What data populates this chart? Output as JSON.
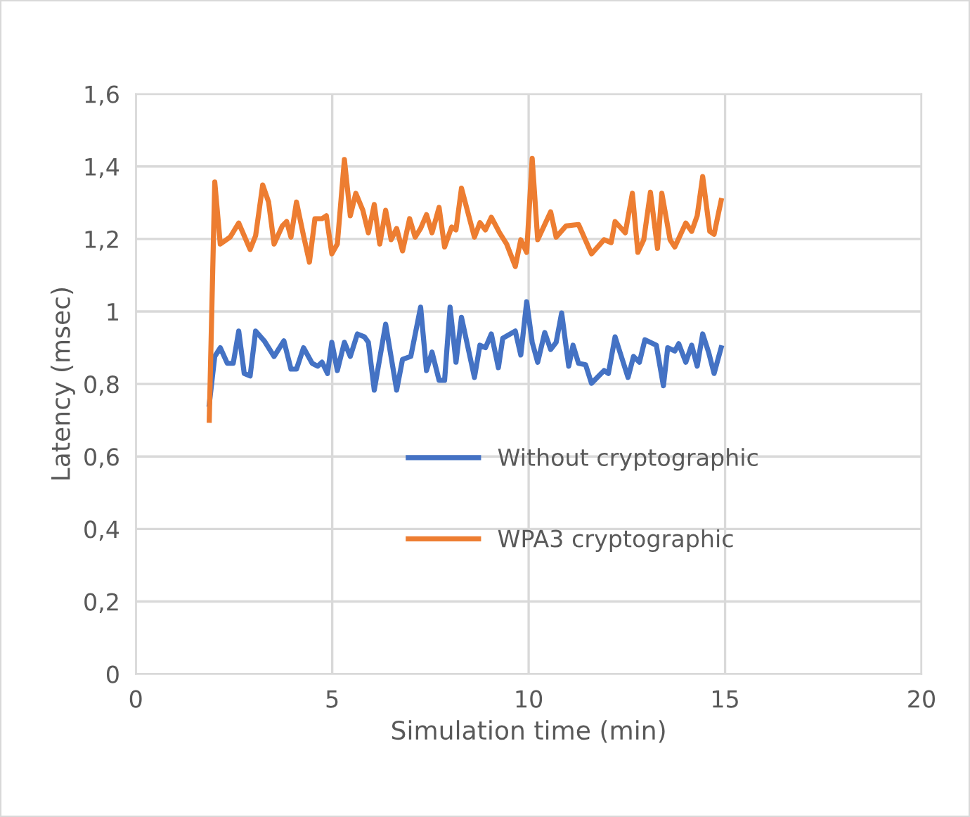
{
  "chart_data": {
    "type": "line",
    "xlabel": "Simulation time (min)",
    "ylabel": "Latency (msec)",
    "xlim": [
      0,
      20
    ],
    "xticks": [
      0,
      5,
      10,
      15,
      20
    ],
    "ylim": [
      0,
      1.6
    ],
    "yticks": [
      0,
      {
        "value": 0.2,
        "label": "0,2"
      },
      {
        "value": 0.4,
        "label": "0,4"
      },
      {
        "value": 0.6,
        "label": "0,6"
      },
      {
        "value": 0.8,
        "label": "0,8"
      },
      1,
      {
        "value": 1.2,
        "label": "1,2"
      },
      {
        "value": 1.4,
        "label": "1,4"
      },
      {
        "value": 1.6,
        "label": "1,6"
      }
    ],
    "grid": true,
    "legend": "center",
    "marker": "none",
    "line_style": "solid",
    "series": [
      {
        "name": "Without cryptographic",
        "color": "#4472c4",
        "x": [
          1.87,
          2.01,
          2.15,
          2.33,
          2.48,
          2.62,
          2.76,
          2.91,
          3.05,
          3.27,
          3.52,
          3.77,
          3.95,
          4.09,
          4.27,
          4.49,
          4.63,
          4.74,
          4.88,
          4.99,
          5.13,
          5.31,
          5.46,
          5.64,
          5.82,
          5.92,
          6.07,
          6.36,
          6.64,
          6.79,
          7.0,
          7.25,
          7.4,
          7.54,
          7.72,
          7.86,
          8.0,
          8.15,
          8.29,
          8.62,
          8.76,
          8.9,
          9.05,
          9.23,
          9.34,
          9.66,
          9.8,
          9.95,
          10.09,
          10.23,
          10.41,
          10.56,
          10.7,
          10.84,
          11.02,
          11.13,
          11.27,
          11.45,
          11.6,
          11.92,
          12.03,
          12.2,
          12.53,
          12.67,
          12.82,
          12.96,
          13.25,
          13.43,
          13.54,
          13.72,
          13.82,
          14.0,
          14.15,
          14.29,
          14.43,
          14.58,
          14.72,
          14.9
        ],
        "values": [
          0.744,
          0.876,
          0.9,
          0.857,
          0.857,
          0.946,
          0.829,
          0.822,
          0.946,
          0.919,
          0.876,
          0.919,
          0.841,
          0.841,
          0.9,
          0.857,
          0.849,
          0.86,
          0.829,
          0.915,
          0.837,
          0.915,
          0.876,
          0.938,
          0.93,
          0.915,
          0.783,
          0.965,
          0.783,
          0.868,
          0.876,
          1.012,
          0.837,
          0.888,
          0.81,
          0.81,
          1.012,
          0.86,
          0.984,
          0.818,
          0.907,
          0.9,
          0.938,
          0.845,
          0.926,
          0.946,
          0.88,
          1.027,
          0.915,
          0.86,
          0.942,
          0.895,
          0.915,
          0.996,
          0.849,
          0.907,
          0.857,
          0.853,
          0.802,
          0.837,
          0.829,
          0.93,
          0.818,
          0.876,
          0.86,
          0.922,
          0.907,
          0.795,
          0.9,
          0.891,
          0.911,
          0.86,
          0.907,
          0.849,
          0.938,
          0.888,
          0.829,
          0.9
        ]
      },
      {
        "name": "WPA3 cryptographic",
        "color": "#ed7d31",
        "x": [
          1.87,
          2.01,
          2.15,
          2.4,
          2.62,
          2.91,
          3.05,
          3.23,
          3.38,
          3.52,
          3.73,
          3.84,
          3.95,
          4.09,
          4.27,
          4.42,
          4.56,
          4.74,
          4.85,
          4.99,
          5.13,
          5.31,
          5.46,
          5.6,
          5.78,
          5.92,
          6.07,
          6.21,
          6.36,
          6.5,
          6.64,
          6.79,
          6.97,
          7.11,
          7.25,
          7.4,
          7.54,
          7.72,
          7.86,
          8.04,
          8.15,
          8.29,
          8.62,
          8.76,
          8.9,
          9.05,
          9.26,
          9.44,
          9.66,
          9.8,
          9.95,
          10.09,
          10.23,
          10.56,
          10.7,
          10.95,
          11.27,
          11.6,
          11.92,
          12.1,
          12.2,
          12.46,
          12.64,
          12.78,
          12.93,
          13.1,
          13.28,
          13.39,
          13.6,
          13.72,
          14.0,
          14.15,
          14.29,
          14.43,
          14.61,
          14.72,
          14.9
        ],
        "values": [
          0.7,
          1.357,
          1.186,
          1.205,
          1.244,
          1.171,
          1.209,
          1.349,
          1.302,
          1.186,
          1.236,
          1.248,
          1.205,
          1.302,
          1.209,
          1.136,
          1.256,
          1.256,
          1.264,
          1.159,
          1.186,
          1.419,
          1.264,
          1.326,
          1.279,
          1.217,
          1.295,
          1.186,
          1.279,
          1.198,
          1.229,
          1.167,
          1.256,
          1.205,
          1.229,
          1.267,
          1.217,
          1.287,
          1.178,
          1.233,
          1.225,
          1.34,
          1.205,
          1.245,
          1.225,
          1.26,
          1.217,
          1.186,
          1.124,
          1.198,
          1.163,
          1.422,
          1.198,
          1.275,
          1.205,
          1.236,
          1.24,
          1.159,
          1.198,
          1.19,
          1.248,
          1.217,
          1.326,
          1.163,
          1.198,
          1.329,
          1.174,
          1.326,
          1.198,
          1.178,
          1.244,
          1.221,
          1.264,
          1.372,
          1.221,
          1.213,
          1.306
        ]
      }
    ]
  }
}
